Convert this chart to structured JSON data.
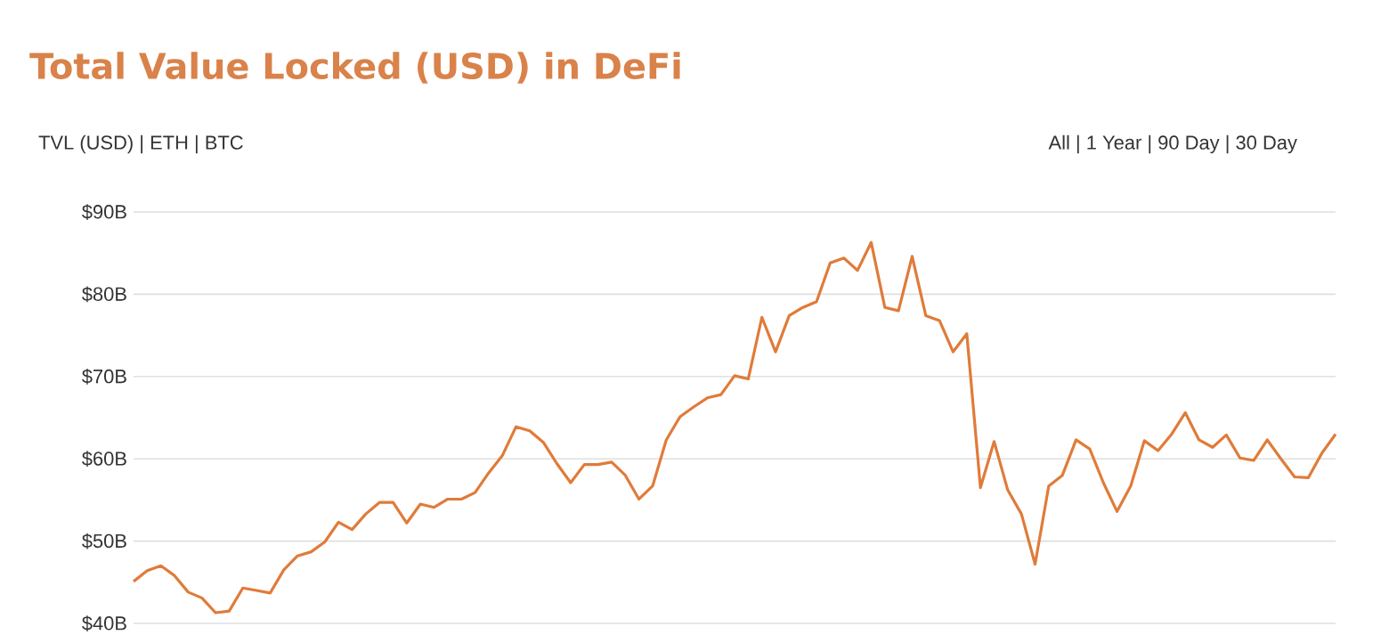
{
  "chart_data": {
    "type": "line",
    "title": "Total Value Locked (USD) in DeFi",
    "annotations": [
      "TVL (USD) | ETH | BTC",
      "All | 1 Year | 90 Day | 30 Day"
    ],
    "categories": [
      null,
      null,
      null,
      null,
      null,
      null,
      null,
      null,
      null,
      null,
      null,
      null,
      null,
      null,
      null,
      null,
      null,
      null,
      null,
      null,
      null,
      null,
      null,
      null,
      null,
      null,
      null,
      null,
      null,
      null,
      null,
      null,
      null,
      null,
      null,
      null,
      null,
      null,
      null,
      null,
      null,
      null,
      null,
      null,
      null,
      null,
      null,
      null,
      null,
      null,
      null,
      null,
      null,
      null,
      null,
      null,
      null,
      null,
      null,
      null,
      null,
      null,
      null,
      null,
      null,
      null,
      null,
      null,
      null,
      null,
      null,
      null,
      null,
      null,
      null,
      null,
      null,
      null,
      null,
      null,
      null,
      null,
      null,
      null,
      null,
      null,
      null,
      null,
      null
    ],
    "series": [
      {
        "color": "#e07b39",
        "values": [
          45.1,
          46.4,
          47.0,
          45.8,
          43.8,
          43.1,
          41.3,
          41.5,
          44.3,
          44.0,
          43.7,
          46.5,
          48.2,
          48.7,
          49.9,
          52.3,
          51.4,
          53.3,
          54.7,
          54.7,
          52.2,
          54.5,
          54.1,
          55.1,
          55.1,
          55.9,
          58.3,
          60.4,
          63.9,
          63.4,
          62.0,
          59.4,
          57.1,
          59.3,
          59.3,
          59.6,
          58.0,
          55.1,
          56.7,
          62.3,
          65.1,
          66.3,
          67.4,
          67.8,
          70.1,
          69.7,
          77.2,
          73.0,
          77.4,
          78.4,
          79.1,
          83.8,
          84.4,
          82.9,
          86.3,
          78.4,
          78.0,
          84.6,
          77.4,
          76.8,
          73.0,
          75.2,
          56.5,
          62.1,
          56.2,
          53.3,
          47.2,
          56.7,
          58.0,
          62.3,
          61.2,
          57.1,
          53.6,
          56.7,
          62.2,
          61.0,
          63.0,
          65.6,
          62.3,
          61.4,
          62.9,
          60.1,
          59.8,
          62.3,
          60.0,
          57.8,
          57.7,
          60.7,
          63.0
        ]
      }
    ],
    "ylim": [
      40,
      90
    ],
    "yticks": [
      {
        "value": 40,
        "label": "$40B"
      },
      {
        "value": 50,
        "label": "$50B"
      },
      {
        "value": 60,
        "label": "$60B"
      },
      {
        "value": 70,
        "label": "$70B"
      },
      {
        "value": 80,
        "label": "$80B"
      },
      {
        "value": 90,
        "label": "$90B"
      }
    ],
    "grid": "y",
    "marker": "none",
    "line_style": "solid",
    "tick_labels": "y"
  }
}
